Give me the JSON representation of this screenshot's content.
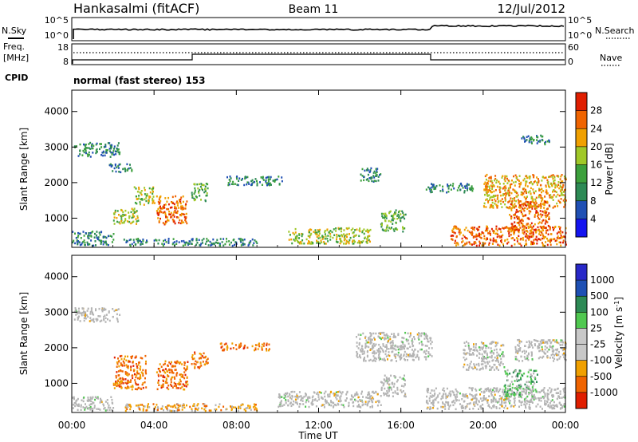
{
  "header": {
    "station": "Hankasalmi (fitACF)",
    "beam": "Beam 11",
    "date": "12/Jul/2012"
  },
  "noise_panel": {
    "left_label": "N.Sky",
    "right_label": "N.Search",
    "ticks_left": [
      "10^5",
      "10^0"
    ],
    "ticks_right": [
      "10^5",
      "10^0"
    ]
  },
  "freq_panel": {
    "left_label_1": "Freq.",
    "left_label_2": "[MHz]",
    "ticks_left": [
      "18",
      "8"
    ],
    "right_label": "Nave",
    "ticks_right": [
      "60",
      "0"
    ],
    "cpid_label": "CPID",
    "mode_text": "normal (fast stereo) 153"
  },
  "colors": {
    "power_scale": [
      "#1414f0",
      "#2050b4",
      "#2d8a55",
      "#3ca03c",
      "#a0c828",
      "#f0a000",
      "#f06400",
      "#e01e00"
    ],
    "velocity_scale": [
      "#e01e00",
      "#f06400",
      "#f0a000",
      "#c8c8c8",
      "#c8c8c8",
      "#50c850",
      "#2d8a55",
      "#1e50b4",
      "#2828c8"
    ],
    "ground_scatter": "#b4b4b4"
  },
  "chart_data": [
    {
      "type": "heatmap",
      "title": "Power",
      "xlabel": "",
      "ylabel": "Slant Range [km]",
      "x_ticks": [
        "00:00",
        "04:00",
        "08:00",
        "12:00",
        "16:00",
        "20:00",
        "00:00"
      ],
      "y_ticks": [
        1000,
        2000,
        3000,
        4000
      ],
      "xlim": [
        0,
        24
      ],
      "ylim": [
        180,
        4600
      ],
      "colorbar_label": "Power [dB]",
      "colorbar_ticks": [
        4,
        8,
        12,
        16,
        20,
        24,
        28
      ],
      "scatter_regions": [
        {
          "t0": 0.1,
          "t1": 2.3,
          "r0": 2750,
          "r1": 3150,
          "level": 2
        },
        {
          "t0": 1.8,
          "t1": 2.9,
          "r0": 2300,
          "r1": 2550,
          "level": 2
        },
        {
          "t0": 2.0,
          "t1": 3.2,
          "r0": 850,
          "r1": 1300,
          "level": 4
        },
        {
          "t0": 3.0,
          "t1": 4.0,
          "r0": 1400,
          "r1": 1900,
          "level": 4
        },
        {
          "t0": 4.1,
          "t1": 5.6,
          "r0": 850,
          "r1": 1650,
          "level": 6
        },
        {
          "t0": 5.8,
          "t1": 6.6,
          "r0": 1500,
          "r1": 2000,
          "level": 3
        },
        {
          "t0": 0.0,
          "t1": 2.0,
          "r0": 250,
          "r1": 650,
          "level": 2
        },
        {
          "t0": 2.5,
          "t1": 9.0,
          "r0": 250,
          "r1": 450,
          "level": 2
        },
        {
          "t0": 7.5,
          "t1": 10.2,
          "r0": 1950,
          "r1": 2200,
          "level": 2
        },
        {
          "t0": 10.5,
          "t1": 14.5,
          "r0": 300,
          "r1": 750,
          "level": 4
        },
        {
          "t0": 14.0,
          "t1": 15.0,
          "r0": 2050,
          "r1": 2450,
          "level": 2
        },
        {
          "t0": 15.0,
          "t1": 16.2,
          "r0": 650,
          "r1": 1250,
          "level": 3
        },
        {
          "t0": 17.2,
          "t1": 19.5,
          "r0": 1750,
          "r1": 2000,
          "level": 2
        },
        {
          "t0": 18.4,
          "t1": 24.0,
          "r0": 250,
          "r1": 800,
          "level": 6
        },
        {
          "t0": 20.0,
          "t1": 24.0,
          "r0": 1300,
          "r1": 2250,
          "level": 5
        },
        {
          "t0": 21.2,
          "t1": 23.2,
          "r0": 650,
          "r1": 1500,
          "level": 6
        },
        {
          "t0": 21.8,
          "t1": 23.2,
          "r0": 3100,
          "r1": 3350,
          "level": 2
        }
      ]
    },
    {
      "type": "heatmap",
      "title": "Velocity",
      "xlabel": "Time UT",
      "ylabel": "Slant Range [km]",
      "x_ticks": [
        "00:00",
        "04:00",
        "08:00",
        "12:00",
        "16:00",
        "20:00",
        "00:00"
      ],
      "y_ticks": [
        1000,
        2000,
        3000,
        4000
      ],
      "xlim": [
        0,
        24
      ],
      "ylim": [
        180,
        4600
      ],
      "colorbar_label": "Velocity [m s^-1]",
      "colorbar_ticks": [
        1000,
        500,
        100,
        25,
        -25,
        -100,
        -500,
        -1000
      ],
      "scatter_regions": [
        {
          "t0": 0.1,
          "t1": 2.3,
          "r0": 2750,
          "r1": 3150,
          "kind": "ground"
        },
        {
          "t0": 0.0,
          "t1": 2.0,
          "r0": 250,
          "r1": 650,
          "kind": "ground"
        },
        {
          "t0": 2.0,
          "t1": 3.6,
          "r0": 850,
          "r1": 1800,
          "kind": "neg"
        },
        {
          "t0": 4.1,
          "t1": 5.6,
          "r0": 850,
          "r1": 1650,
          "kind": "neg"
        },
        {
          "t0": 5.8,
          "t1": 6.6,
          "r0": 1450,
          "r1": 1900,
          "kind": "neg"
        },
        {
          "t0": 7.2,
          "t1": 9.6,
          "r0": 1950,
          "r1": 2150,
          "kind": "neg"
        },
        {
          "t0": 2.5,
          "t1": 9.0,
          "r0": 250,
          "r1": 450,
          "kind": "mixed"
        },
        {
          "t0": 10.0,
          "t1": 15.0,
          "r0": 350,
          "r1": 800,
          "kind": "ground"
        },
        {
          "t0": 13.8,
          "t1": 17.5,
          "r0": 1650,
          "r1": 2450,
          "kind": "ground"
        },
        {
          "t0": 15.0,
          "t1": 16.2,
          "r0": 650,
          "r1": 1250,
          "kind": "ground"
        },
        {
          "t0": 17.2,
          "t1": 24.0,
          "r0": 300,
          "r1": 900,
          "kind": "ground"
        },
        {
          "t0": 19.0,
          "t1": 21.0,
          "r0": 1400,
          "r1": 2200,
          "kind": "ground"
        },
        {
          "t0": 21.0,
          "t1": 22.6,
          "r0": 650,
          "r1": 1400,
          "kind": "pos"
        },
        {
          "t0": 21.5,
          "t1": 24.0,
          "r0": 1650,
          "r1": 2250,
          "kind": "ground"
        }
      ]
    }
  ]
}
